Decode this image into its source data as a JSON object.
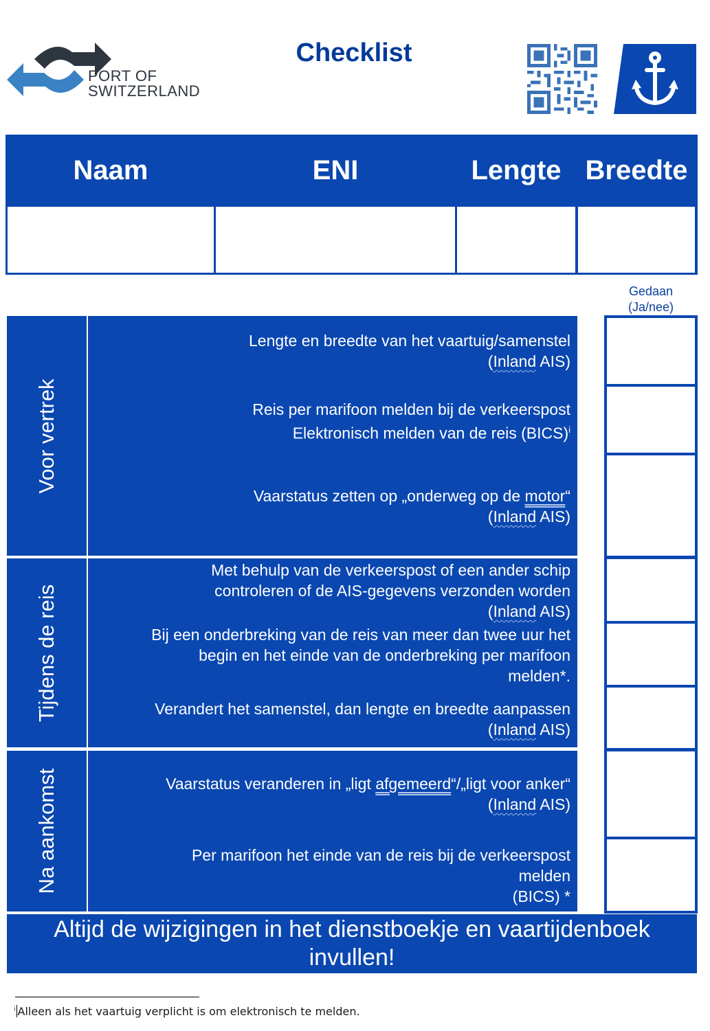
{
  "header": {
    "logo_line1": "PORT OF",
    "logo_line2": "SWITZERLAND",
    "title": "Checklist",
    "qr_icon": "qr-code-icon",
    "anchor_icon": "anchor-icon"
  },
  "vessel_table": {
    "columns": [
      "Naam",
      "ENI",
      "Lengte",
      "Breedte"
    ],
    "values": [
      "",
      "",
      "",
      ""
    ]
  },
  "done_column": {
    "label_line1": "Gedaan",
    "label_line2": "(Ja/nee)"
  },
  "sections": [
    {
      "label": "Voor vertrek",
      "items": [
        {
          "line1": "Lengte en breedte van het vaartuig/samenstel",
          "line2_word": "Inland",
          "line2_rest": " AIS)"
        },
        {
          "line1": "Reis per marifoon melden bij de verkeerspost",
          "line2": "Elektronisch melden van de reis (BICS)",
          "footnote_mark": "i"
        },
        {
          "line1_pre": "Vaarstatus zetten op „onderweg op de ",
          "line1_word": "motor",
          "line1_post": "“",
          "line2_word": "Inland",
          "line2_rest": " AIS)"
        }
      ]
    },
    {
      "label": "Tijdens de reis",
      "items": [
        {
          "line1": "Met behulp van de verkeerspost of een ander schip",
          "line2": "controleren of de AIS-gegevens verzonden worden",
          "line3_word": "Inland",
          "line3_rest": " AIS)"
        },
        {
          "line1": "Bij een onderbreking van de reis van meer dan twee uur het",
          "line2": "begin en het einde van de onderbreking per marifoon",
          "line3": "melden*."
        },
        {
          "line1": "Verandert het samenstel, dan lengte en breedte aanpassen",
          "line2_word": "Inland",
          "line2_rest": " AIS)"
        }
      ]
    },
    {
      "label": "Na aankomst",
      "items": [
        {
          "line1_pre": "Vaarstatus veranderen in „ligt ",
          "line1_word": "afgemeerd",
          "line1_post": "“/„ligt voor anker“",
          "line2_word": "Inland",
          "line2_rest": " AIS)"
        },
        {
          "line1": "Per marifoon het einde van de reis bij de verkeerspost",
          "line2": "melden",
          "line3": "(BICS) *"
        }
      ]
    }
  ],
  "checkboxes": [
    "",
    "",
    "",
    "",
    "",
    "",
    "",
    ""
  ],
  "banner": {
    "line1": "Altijd de wijzigingen in het dienstboekje en vaartijdenboek",
    "line2": "invullen!"
  },
  "footnote": {
    "mark": "i",
    "text": "Alleen als het vaartuig verplicht is om elektronisch te melden."
  },
  "colors": {
    "brand_blue": "#0a47b0",
    "title_blue": "#003a99",
    "logo_blue": "#3a82c4",
    "logo_dark": "#2e3640"
  }
}
